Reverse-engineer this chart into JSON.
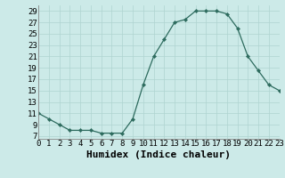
{
  "hours": [
    0,
    1,
    2,
    3,
    4,
    5,
    6,
    7,
    8,
    9,
    10,
    11,
    12,
    13,
    14,
    15,
    16,
    17,
    18,
    19,
    20,
    21,
    22,
    23
  ],
  "values": [
    11,
    10,
    9,
    8,
    8,
    8,
    7.5,
    7.5,
    7.5,
    10,
    16,
    21,
    24,
    27,
    27.5,
    29,
    29,
    29,
    28.5,
    26,
    21,
    18.5,
    16,
    15
  ],
  "xlabel": "Humidex (Indice chaleur)",
  "xlim": [
    0,
    23
  ],
  "ylim": [
    6.5,
    30
  ],
  "yticks": [
    7,
    9,
    11,
    13,
    15,
    17,
    19,
    21,
    23,
    25,
    27,
    29
  ],
  "xtick_labels": [
    "0",
    "1",
    "2",
    "3",
    "4",
    "5",
    "6",
    "7",
    "8",
    "9",
    "10",
    "11",
    "12",
    "13",
    "14",
    "15",
    "16",
    "17",
    "18",
    "19",
    "20",
    "21",
    "22",
    "23"
  ],
  "line_color": "#2d6b5e",
  "marker_color": "#2d6b5e",
  "bg_color": "#cceae8",
  "grid_color": "#afd4d0",
  "tick_fontsize": 6.5,
  "label_fontsize": 8
}
